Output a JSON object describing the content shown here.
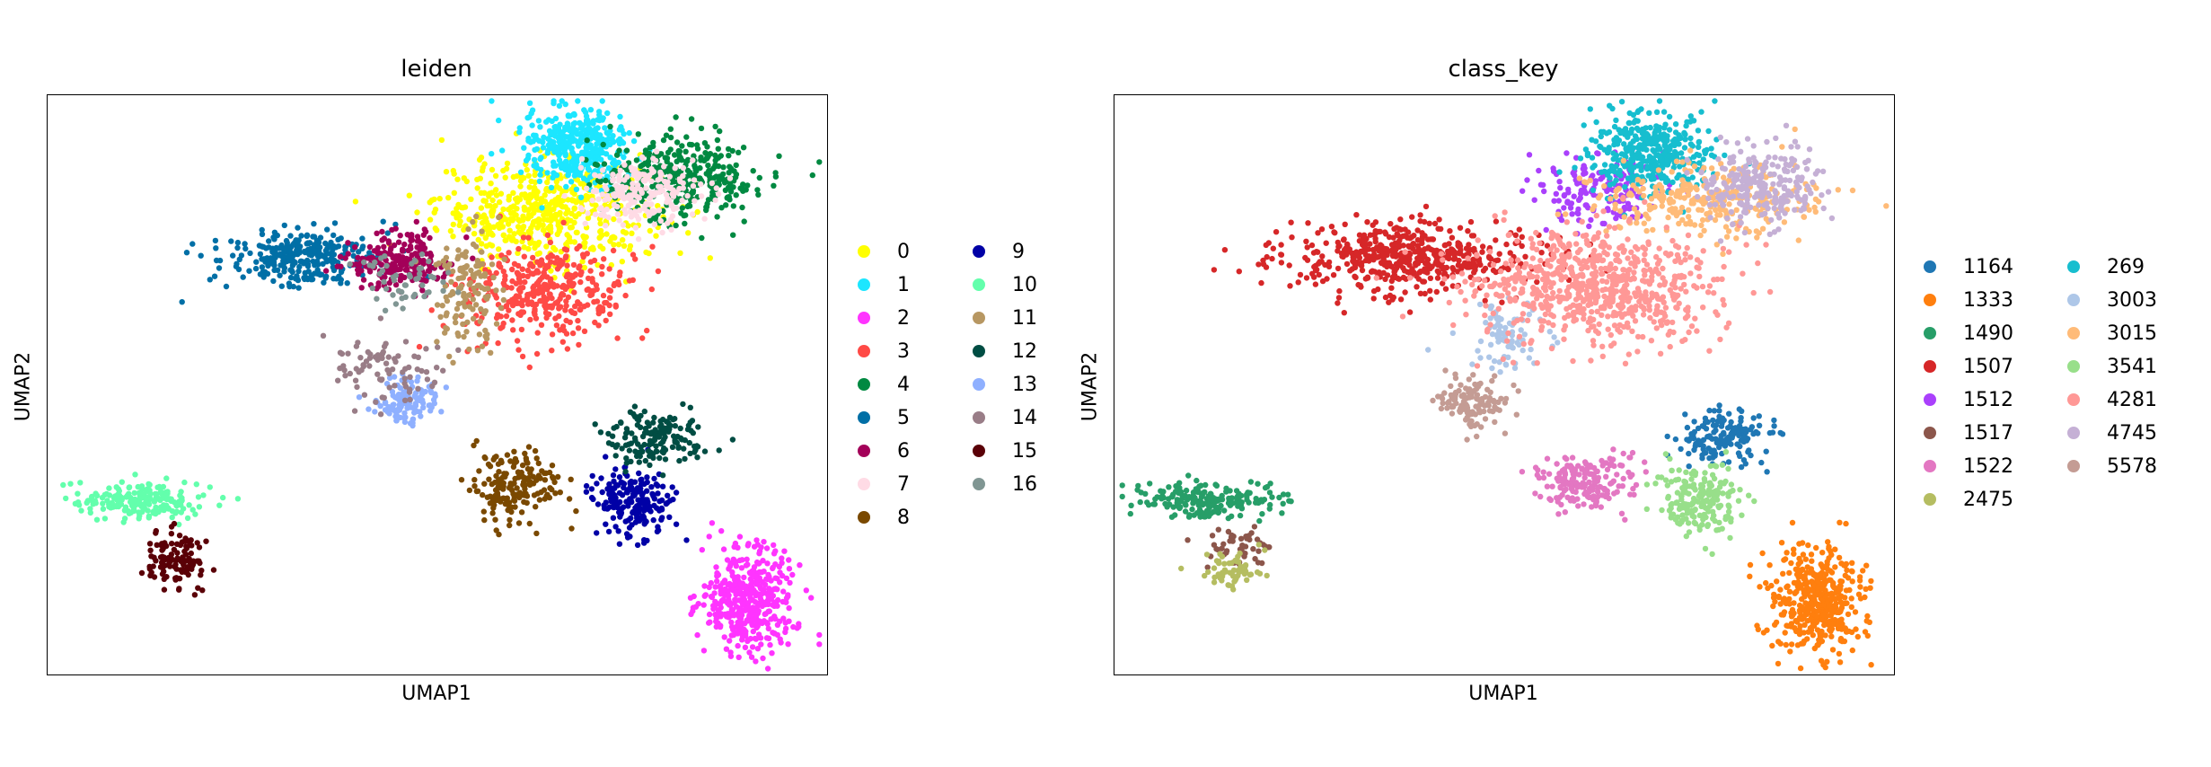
{
  "chart_data": [
    {
      "type": "scatter",
      "title": "leiden",
      "xlabel": "UMAP1",
      "ylabel": "UMAP2",
      "grid": false,
      "legend_position": "right",
      "legend_columns": 2,
      "categories": [
        "0",
        "1",
        "2",
        "3",
        "4",
        "5",
        "6",
        "7",
        "8",
        "9",
        "10",
        "11",
        "12",
        "13",
        "14",
        "15",
        "16"
      ],
      "colors": [
        "#ffff00",
        "#1ce6ff",
        "#ff34ff",
        "#ff4a46",
        "#008941",
        "#006fa6",
        "#a30059",
        "#ffdbe5",
        "#7a4900",
        "#0000a6",
        "#63ffac",
        "#b79762",
        "#004d43",
        "#8fb0ff",
        "#997d87",
        "#5a0007",
        "#809693"
      ],
      "clusters": [
        {
          "category": "0",
          "cx": 0.64,
          "cy": 0.8,
          "sx": 0.07,
          "sy": 0.045,
          "n": 520
        },
        {
          "category": "1",
          "cx": 0.68,
          "cy": 0.91,
          "sx": 0.035,
          "sy": 0.035,
          "n": 360
        },
        {
          "category": "2",
          "cx": 0.9,
          "cy": 0.13,
          "sx": 0.03,
          "sy": 0.045,
          "n": 420
        },
        {
          "category": "3",
          "cx": 0.64,
          "cy": 0.66,
          "sx": 0.055,
          "sy": 0.04,
          "n": 360
        },
        {
          "category": "4",
          "cx": 0.81,
          "cy": 0.86,
          "sx": 0.05,
          "sy": 0.035,
          "n": 360
        },
        {
          "category": "5",
          "cx": 0.33,
          "cy": 0.72,
          "sx": 0.05,
          "sy": 0.025,
          "n": 300
        },
        {
          "category": "6",
          "cx": 0.45,
          "cy": 0.71,
          "sx": 0.035,
          "sy": 0.025,
          "n": 220
        },
        {
          "category": "7",
          "cx": 0.76,
          "cy": 0.83,
          "sx": 0.04,
          "sy": 0.03,
          "n": 200
        },
        {
          "category": "8",
          "cx": 0.6,
          "cy": 0.33,
          "sx": 0.03,
          "sy": 0.025,
          "n": 180
        },
        {
          "category": "9",
          "cx": 0.75,
          "cy": 0.3,
          "sx": 0.025,
          "sy": 0.03,
          "n": 200
        },
        {
          "category": "10",
          "cx": 0.12,
          "cy": 0.3,
          "sx": 0.045,
          "sy": 0.015,
          "n": 200
        },
        {
          "category": "11",
          "cx": 0.54,
          "cy": 0.66,
          "sx": 0.02,
          "sy": 0.05,
          "n": 130
        },
        {
          "category": "12",
          "cx": 0.78,
          "cy": 0.41,
          "sx": 0.03,
          "sy": 0.025,
          "n": 150
        },
        {
          "category": "13",
          "cx": 0.46,
          "cy": 0.47,
          "sx": 0.02,
          "sy": 0.02,
          "n": 120
        },
        {
          "category": "14",
          "cx": 0.43,
          "cy": 0.53,
          "sx": 0.04,
          "sy": 0.03,
          "n": 80
        },
        {
          "category": "15",
          "cx": 0.16,
          "cy": 0.2,
          "sx": 0.02,
          "sy": 0.025,
          "n": 110
        },
        {
          "category": "16",
          "cx": 0.46,
          "cy": 0.68,
          "sx": 0.025,
          "sy": 0.02,
          "n": 50
        }
      ]
    },
    {
      "type": "scatter",
      "title": "class_key",
      "xlabel": "UMAP1",
      "ylabel": "UMAP2",
      "grid": false,
      "legend_position": "right",
      "legend_columns": 2,
      "categories": [
        "1164",
        "1333",
        "1490",
        "1507",
        "1512",
        "1517",
        "1522",
        "2475",
        "269",
        "3003",
        "3015",
        "3541",
        "4281",
        "4745",
        "5578"
      ],
      "colors": [
        "#1f77b4",
        "#ff7f0e",
        "#279e68",
        "#d62728",
        "#aa40fc",
        "#8c564b",
        "#e377c2",
        "#b5bd61",
        "#17becf",
        "#aec7e8",
        "#ffbb78",
        "#98df8a",
        "#ff9896",
        "#c5b0d5",
        "#c49c94"
      ],
      "clusters": [
        {
          "category": "1164",
          "cx": 0.78,
          "cy": 0.41,
          "sx": 0.03,
          "sy": 0.025,
          "n": 150
        },
        {
          "category": "1333",
          "cx": 0.9,
          "cy": 0.13,
          "sx": 0.03,
          "sy": 0.045,
          "n": 420
        },
        {
          "category": "1490",
          "cx": 0.12,
          "cy": 0.3,
          "sx": 0.045,
          "sy": 0.015,
          "n": 200
        },
        {
          "category": "1507",
          "cx": 0.38,
          "cy": 0.72,
          "sx": 0.08,
          "sy": 0.03,
          "n": 520
        },
        {
          "category": "1512",
          "cx": 0.62,
          "cy": 0.83,
          "sx": 0.04,
          "sy": 0.035,
          "n": 160
        },
        {
          "category": "1517",
          "cx": 0.16,
          "cy": 0.22,
          "sx": 0.02,
          "sy": 0.02,
          "n": 50
        },
        {
          "category": "1522",
          "cx": 0.6,
          "cy": 0.33,
          "sx": 0.03,
          "sy": 0.025,
          "n": 180
        },
        {
          "category": "2475",
          "cx": 0.15,
          "cy": 0.18,
          "sx": 0.02,
          "sy": 0.015,
          "n": 60
        },
        {
          "category": "269",
          "cx": 0.69,
          "cy": 0.9,
          "sx": 0.04,
          "sy": 0.035,
          "n": 360
        },
        {
          "category": "3003",
          "cx": 0.5,
          "cy": 0.58,
          "sx": 0.03,
          "sy": 0.03,
          "n": 80
        },
        {
          "category": "3015",
          "cx": 0.76,
          "cy": 0.82,
          "sx": 0.07,
          "sy": 0.035,
          "n": 300
        },
        {
          "category": "3541",
          "cx": 0.75,
          "cy": 0.3,
          "sx": 0.025,
          "sy": 0.03,
          "n": 200
        },
        {
          "category": "4281",
          "cx": 0.62,
          "cy": 0.67,
          "sx": 0.08,
          "sy": 0.05,
          "n": 700
        },
        {
          "category": "4745",
          "cx": 0.83,
          "cy": 0.84,
          "sx": 0.04,
          "sy": 0.035,
          "n": 250
        },
        {
          "category": "5578",
          "cx": 0.46,
          "cy": 0.47,
          "sx": 0.02,
          "sy": 0.02,
          "n": 120
        }
      ]
    }
  ]
}
